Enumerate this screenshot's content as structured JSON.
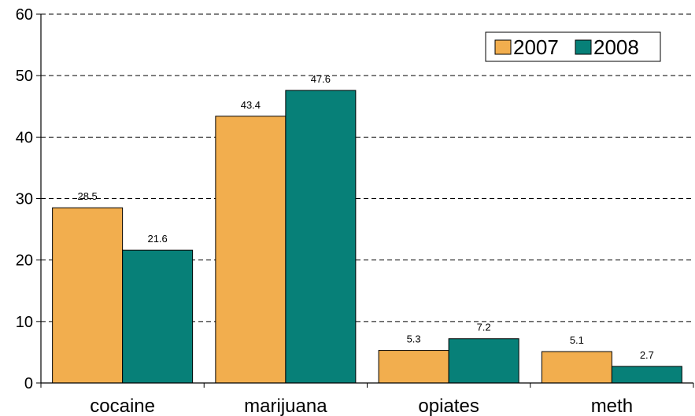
{
  "chart_data": {
    "type": "bar",
    "categories": [
      "cocaine",
      "marijuana",
      "opiates",
      "meth"
    ],
    "series": [
      {
        "name": "2007",
        "color": "#F2AE4E",
        "values": [
          28.5,
          43.4,
          5.3,
          5.1
        ]
      },
      {
        "name": "2008",
        "color": "#078078",
        "values": [
          21.6,
          47.6,
          7.2,
          2.7
        ]
      }
    ],
    "y_ticks": [
      "0",
      "10",
      "20",
      "30",
      "40",
      "50",
      "60"
    ],
    "ylim": [
      0,
      60
    ],
    "grid": true,
    "legend_position": "top-right",
    "data_labels": [
      [
        "28.5",
        "43.4",
        "5.3",
        "5.1"
      ],
      [
        "21.6",
        "47.6",
        "7.2",
        "2.7"
      ]
    ]
  }
}
